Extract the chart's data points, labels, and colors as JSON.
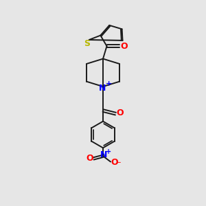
{
  "background_color": "#e6e6e6",
  "fig_size": [
    3.0,
    3.0
  ],
  "dpi": 100,
  "atom_colors": {
    "S": "#b8b800",
    "O": "#ff0000",
    "N_plus": "#0000ff",
    "N_nitro": "#0000ff",
    "O_minus": "#ff0000",
    "C": "#000000"
  },
  "bond_color": "#1a1a1a",
  "bond_lw": 1.4
}
